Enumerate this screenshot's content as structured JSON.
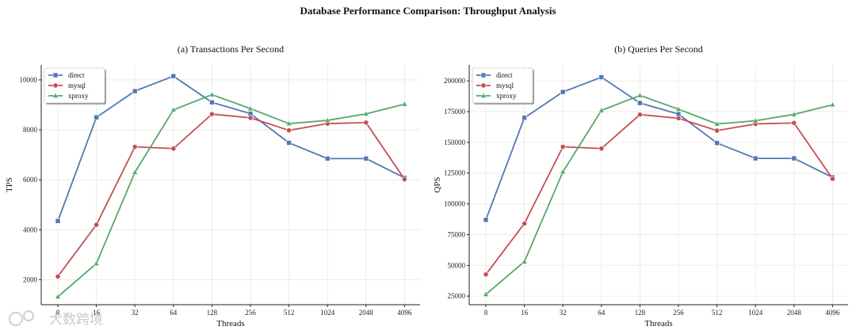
{
  "figure_title": "Database Performance Comparison: Throughput Analysis",
  "colors": {
    "direct": "#5078b4",
    "mysql": "#c44e52",
    "xproxy": "#55a868"
  },
  "watermark": "大数跨境",
  "chart_data": [
    {
      "type": "line",
      "title": "(a) Transactions Per Second",
      "xlabel": "Threads",
      "ylabel": "TPS",
      "categories": [
        "8",
        "16",
        "32",
        "64",
        "128",
        "256",
        "512",
        "1024",
        "2048",
        "4096"
      ],
      "ylim": [
        1000,
        10600
      ],
      "yticks": [
        2000,
        4000,
        6000,
        8000,
        10000
      ],
      "ytick_labels": [
        "2000",
        "4000",
        "6000",
        "8000",
        "10000"
      ],
      "legend": "top-left",
      "series": [
        {
          "name": "direct",
          "marker": "square",
          "values": [
            4350,
            8500,
            9550,
            10150,
            9100,
            8650,
            7480,
            6850,
            6850,
            6080
          ]
        },
        {
          "name": "mysql",
          "marker": "circle",
          "values": [
            2130,
            4200,
            7320,
            7250,
            8630,
            8480,
            7980,
            8250,
            8290,
            6020
          ]
        },
        {
          "name": "xproxy",
          "marker": "triangle",
          "values": [
            1320,
            2650,
            6300,
            8800,
            9410,
            8850,
            8250,
            8380,
            8640,
            9030
          ]
        }
      ]
    },
    {
      "type": "line",
      "title": "(b) Queries Per Second",
      "xlabel": "Threads",
      "ylabel": "QPS",
      "categories": [
        "8",
        "16",
        "32",
        "64",
        "128",
        "256",
        "512",
        "1024",
        "2048",
        "4096"
      ],
      "ylim": [
        18000,
        213000
      ],
      "yticks": [
        25000,
        50000,
        75000,
        100000,
        125000,
        150000,
        175000,
        200000
      ],
      "ytick_labels": [
        "25000",
        "50000",
        "75000",
        "100000",
        "125000",
        "150000",
        "175000",
        "200000"
      ],
      "legend": "top-left",
      "series": [
        {
          "name": "direct",
          "marker": "square",
          "values": [
            87000,
            170000,
            191000,
            203000,
            182000,
            173000,
            149500,
            137000,
            137000,
            121600
          ]
        },
        {
          "name": "mysql",
          "marker": "circle",
          "values": [
            42600,
            84000,
            146400,
            145000,
            172600,
            169600,
            159600,
            165000,
            165800,
            120400
          ]
        },
        {
          "name": "xproxy",
          "marker": "triangle",
          "values": [
            26400,
            53000,
            126000,
            176000,
            188200,
            177000,
            165000,
            167600,
            172800,
            180600
          ]
        }
      ]
    }
  ]
}
